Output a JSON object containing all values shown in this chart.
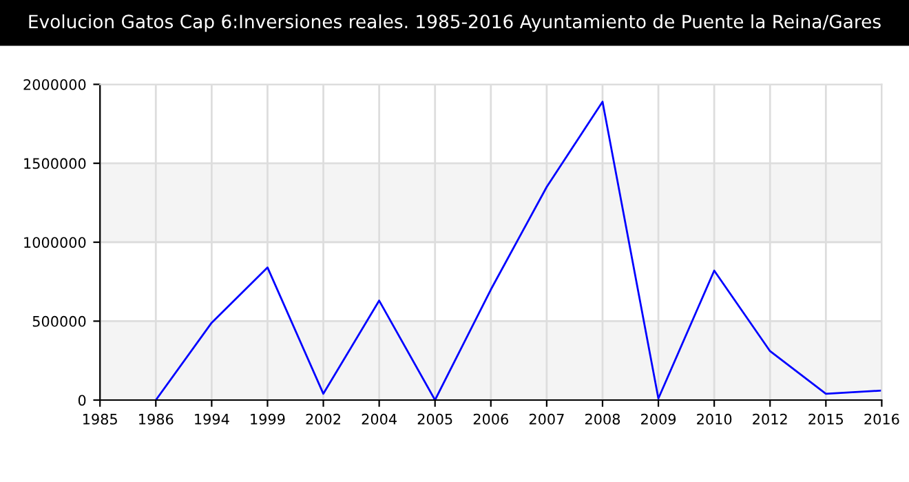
{
  "chart_data": {
    "type": "line",
    "title": "Evolucion Gatos Cap 6:Inversiones reales. 1985-2016 Ayuntamiento de Puente la Reina/Gares",
    "categories": [
      "1985",
      "1986",
      "1994",
      "1999",
      "2002",
      "2004",
      "2005",
      "2006",
      "2007",
      "2008",
      "2009",
      "2010",
      "2012",
      "2015",
      "2016"
    ],
    "series": [
      {
        "color": "#0000ff",
        "values": [
          null,
          0,
          490000,
          840000,
          40000,
          630000,
          0,
          700000,
          1350000,
          1890000,
          10000,
          820000,
          310000,
          40000,
          60000
        ]
      }
    ],
    "ylim": [
      0,
      2000000
    ],
    "yticks": [
      0,
      500000,
      1000000,
      1500000,
      2000000
    ],
    "grid": true,
    "marker": "none",
    "line_style": "solid"
  }
}
